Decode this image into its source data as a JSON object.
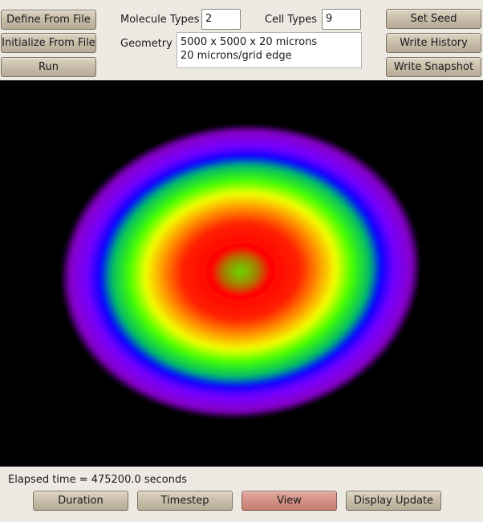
{
  "left_buttons": {
    "define_from_file": "Define From File",
    "initialize_from_file": "Initialize From File",
    "run": "Run"
  },
  "params": {
    "molecule_types_label": "Molecule Types",
    "molecule_types_value": "2",
    "cell_types_label": "Cell Types",
    "cell_types_value": "9",
    "geometry_label": "Geometry",
    "geometry_line1": "5000 x 5000 x 20 microns",
    "geometry_line2": "20 microns/grid edge"
  },
  "right_buttons": {
    "set_seed": "Set Seed",
    "write_history": "Write History",
    "write_snapshot": "Write Snapshot"
  },
  "status": {
    "elapsed": "Elapsed time = 475200.0 seconds"
  },
  "bottom_buttons": {
    "duration": "Duration",
    "timestep": "Timestep",
    "view": "View",
    "display_update": "Display Update"
  },
  "colors": {
    "view_active": "#d28f84",
    "canvas_bg": "#000000",
    "palette": [
      "#9a00ff",
      "#0000ff",
      "#00dd00",
      "#ffff00",
      "#ff0000"
    ]
  }
}
